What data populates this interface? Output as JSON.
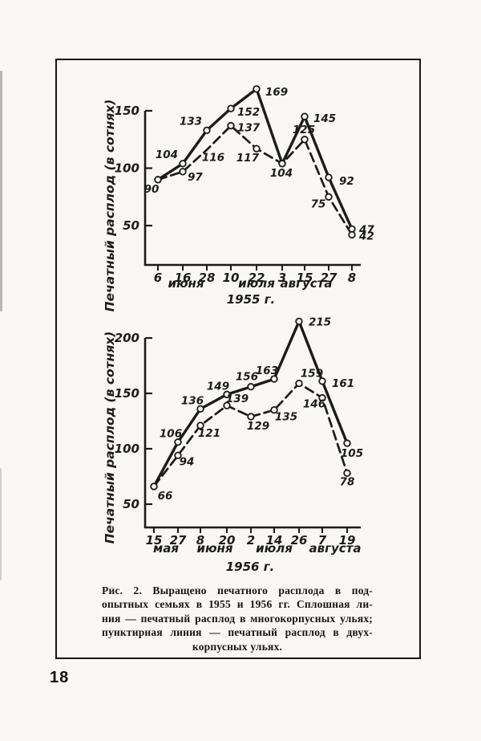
{
  "chart_data": [
    {
      "type": "line",
      "year_label": "1955 г.",
      "ylabel": "Печатный расплод  (в сотнях)",
      "y_ticks": [
        50,
        100,
        150
      ],
      "x_day_labels": [
        "6",
        "16",
        "28",
        "10",
        "22",
        "3",
        "15",
        "27",
        "8"
      ],
      "x_month_labels": [
        "июня",
        "июля",
        "августа"
      ],
      "grid": false,
      "series": [
        {
          "name": "печатный расплод в многокорпусных ульях (сплошная линия)",
          "line_style": "solid",
          "values": [
            90,
            104,
            133,
            152,
            169,
            104,
            145,
            92,
            47
          ]
        },
        {
          "name": "печатный расплод в двухкорпусных ульях (пунктирная линия)",
          "line_style": "dashed",
          "values": [
            90,
            97,
            116,
            137,
            117,
            104,
            125,
            75,
            42
          ]
        }
      ]
    },
    {
      "type": "line",
      "year_label": "1956 г.",
      "ylabel": "Печатный расплод  (в сотнях)",
      "y_ticks": [
        50,
        100,
        150,
        200
      ],
      "x_day_labels": [
        "15",
        "27",
        "8",
        "20",
        "2",
        "14",
        "26",
        "7",
        "19"
      ],
      "x_month_labels": [
        "мая",
        "июня",
        "июля",
        "августа"
      ],
      "grid": false,
      "series": [
        {
          "name": "печатный расплод в многокорпусных ульях (сплошная линия)",
          "line_style": "solid",
          "values": [
            66,
            106,
            136,
            149,
            156,
            163,
            215,
            161,
            105
          ]
        },
        {
          "name": "печатный расплод в двухкорпусных ульях (пунктирная линия)",
          "line_style": "dashed",
          "values": [
            66,
            94,
            121,
            139,
            129,
            135,
            159,
            146,
            78
          ]
        }
      ]
    }
  ],
  "caption": {
    "lines": [
      "Рис. 2. Выращено печатного расплода в под-",
      "опытных семьях в 1955 и 1956 гг. Сплошная ли-",
      "ния — печатный расплод в многокорпусных ульях;",
      "пунктирная линия — печатный расплод в двух-",
      "корпусных ульях."
    ]
  },
  "page_number": "18",
  "colors": {
    "ink": "#1b1b1b",
    "paper": "#f9f8f5"
  }
}
